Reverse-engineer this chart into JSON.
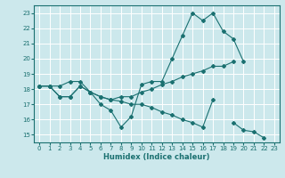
{
  "xlabel": "Humidex (Indice chaleur)",
  "xlim": [
    -0.5,
    23.5
  ],
  "ylim": [
    14.5,
    23.5
  ],
  "xticks": [
    0,
    1,
    2,
    3,
    4,
    5,
    6,
    7,
    8,
    9,
    10,
    11,
    12,
    13,
    14,
    15,
    16,
    17,
    18,
    19,
    20,
    21,
    22,
    23
  ],
  "yticks": [
    15,
    16,
    17,
    18,
    19,
    20,
    21,
    22,
    23
  ],
  "bg_color": "#cce8ec",
  "line_color": "#1a7070",
  "grid_color": "#ffffff",
  "line1_x": [
    0,
    1,
    2,
    3,
    4,
    5,
    6,
    7,
    8,
    9,
    10,
    11,
    12,
    13,
    14,
    15,
    16,
    17,
    18,
    19,
    20
  ],
  "line1_y": [
    18.2,
    18.2,
    18.2,
    18.5,
    18.5,
    17.8,
    17.0,
    16.6,
    15.5,
    16.2,
    18.3,
    18.5,
    18.5,
    20.0,
    21.5,
    23.0,
    22.5,
    23.0,
    21.8,
    21.3,
    19.8
  ],
  "line2_x": [
    0,
    1,
    2,
    3,
    4,
    5,
    6,
    7,
    8,
    9,
    10,
    11,
    12,
    13,
    14,
    15,
    16,
    17,
    18,
    19
  ],
  "line2_y": [
    18.2,
    18.2,
    17.5,
    17.5,
    18.2,
    17.8,
    17.5,
    17.3,
    17.5,
    17.5,
    17.8,
    18.0,
    18.3,
    18.5,
    18.8,
    19.0,
    19.2,
    19.5,
    19.5,
    19.8
  ],
  "line3_x": [
    0,
    1,
    2,
    3,
    4,
    5,
    6,
    7,
    8,
    9,
    10,
    11,
    12,
    13,
    14,
    15,
    16,
    17,
    19,
    20,
    21,
    22
  ],
  "line3_y": [
    18.2,
    18.2,
    17.5,
    17.5,
    18.2,
    17.8,
    17.5,
    17.3,
    17.2,
    17.0,
    17.0,
    16.8,
    16.5,
    16.3,
    16.0,
    15.8,
    15.5,
    17.3,
    15.8,
    15.3,
    15.2,
    14.8
  ]
}
